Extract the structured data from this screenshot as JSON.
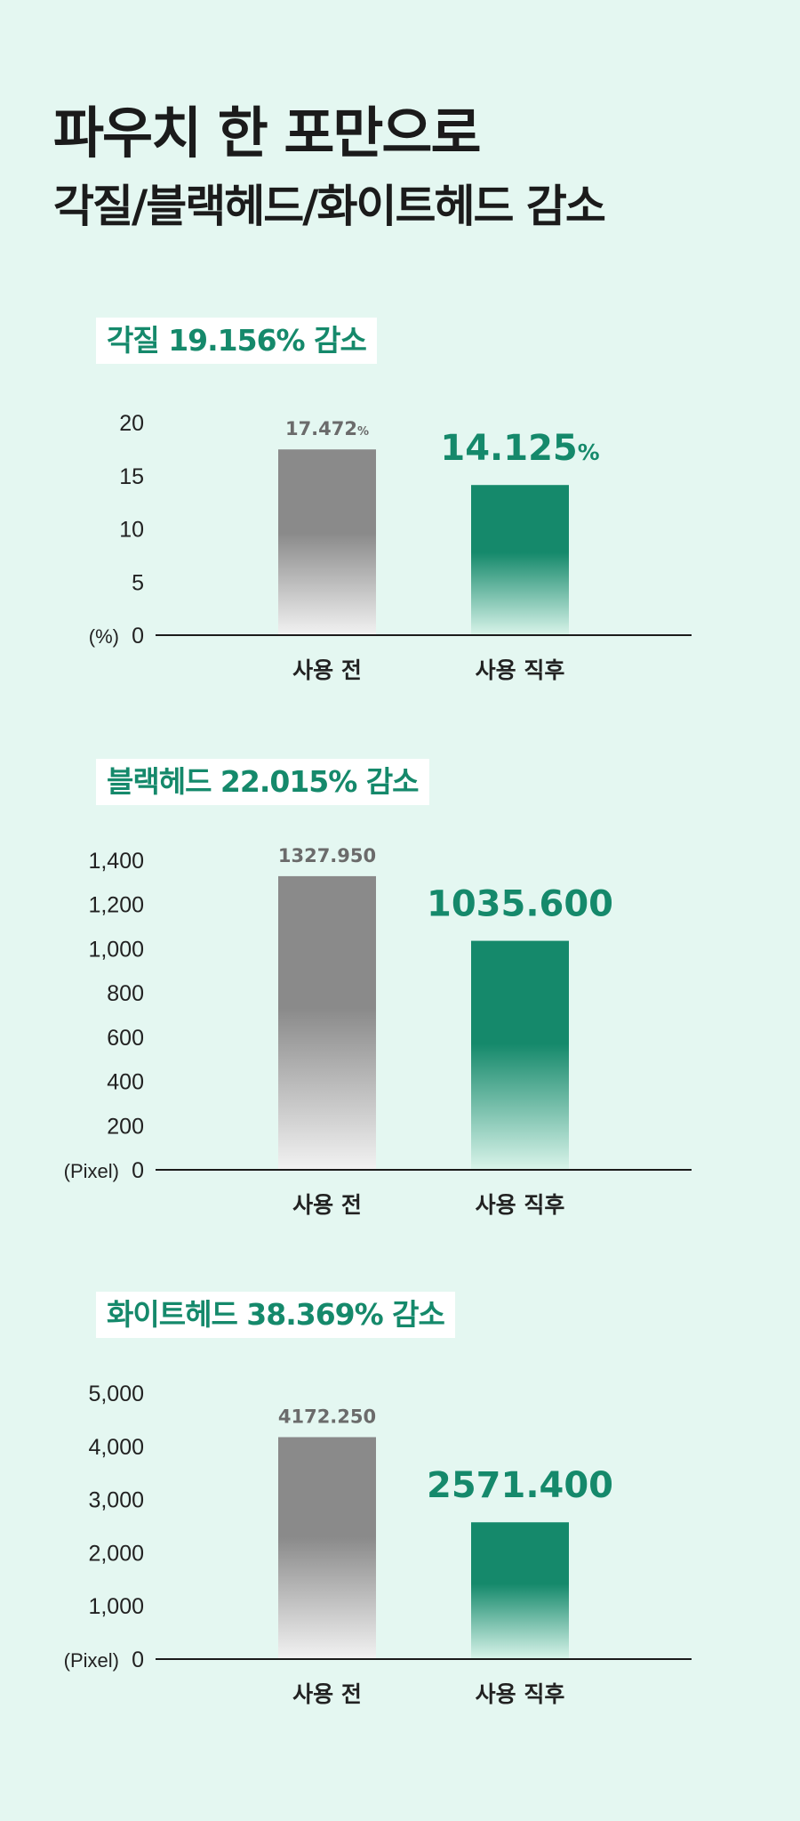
{
  "headline": {
    "line1": "파우치 한 포만으로",
    "line2": "각질/블랙헤드/화이트헤드 감소"
  },
  "colors": {
    "background": "#e4f7f1",
    "accent": "#15896b",
    "before_bar": "#8a8a8a",
    "title_box": "#ffffff"
  },
  "chart_data": [
    {
      "type": "bar",
      "title": "각질 19.156% 감소",
      "unit_label": "(%)",
      "categories": [
        "사용 전",
        "사용 직후"
      ],
      "values": [
        17.472,
        14.125
      ],
      "value_labels": [
        {
          "number": "17.472",
          "suffix": "%"
        },
        {
          "number": "14.125",
          "suffix": "%"
        }
      ],
      "ylim": [
        0,
        20
      ],
      "yticks": [
        0,
        5,
        10,
        15,
        20
      ],
      "ytick_labels": [
        "0",
        "5",
        "10",
        "15",
        "20"
      ],
      "grid": false
    },
    {
      "type": "bar",
      "title": "블랙헤드 22.015% 감소",
      "unit_label": "(Pixel)",
      "categories": [
        "사용 전",
        "사용 직후"
      ],
      "values": [
        1327.95,
        1035.6
      ],
      "value_labels": [
        {
          "number": "1327.950",
          "suffix": ""
        },
        {
          "number": "1035.600",
          "suffix": ""
        }
      ],
      "ylim": [
        0,
        1400
      ],
      "yticks": [
        0,
        200,
        400,
        600,
        800,
        1000,
        1200,
        1400
      ],
      "ytick_labels": [
        "0",
        "200",
        "400",
        "600",
        "800",
        "1,000",
        "1,200",
        "1,400"
      ],
      "grid": false
    },
    {
      "type": "bar",
      "title": "화이트헤드 38.369% 감소",
      "unit_label": "(Pixel)",
      "categories": [
        "사용 전",
        "사용 직후"
      ],
      "values": [
        4172.25,
        2571.4
      ],
      "value_labels": [
        {
          "number": "4172.250",
          "suffix": ""
        },
        {
          "number": "2571.400",
          "suffix": ""
        }
      ],
      "ylim": [
        0,
        5000
      ],
      "yticks": [
        0,
        1000,
        2000,
        3000,
        4000,
        5000
      ],
      "ytick_labels": [
        "0",
        "1,000",
        "2,000",
        "3,000",
        "4,000",
        "5,000"
      ],
      "grid": false
    }
  ]
}
